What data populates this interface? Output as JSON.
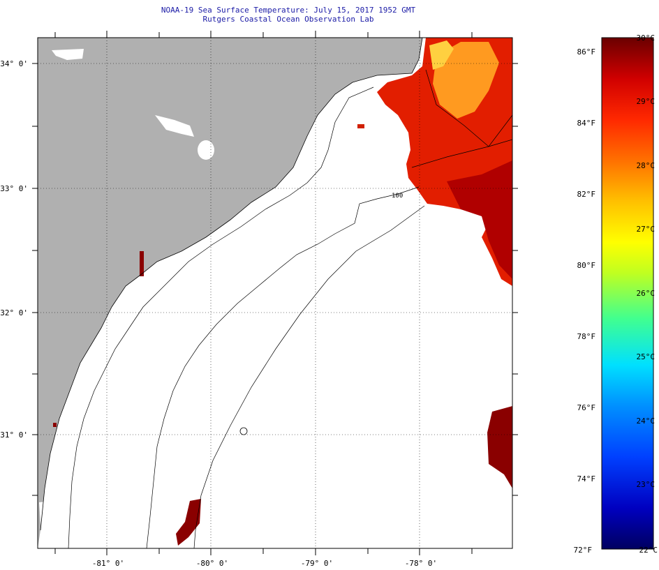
{
  "header": {
    "title": "NOAA-19 Sea Surface Temperature:  July 15, 2017 1952 GMT",
    "subtitle": "Rutgers Coastal Ocean Observation Lab"
  },
  "map": {
    "lon_ticks": [
      "-81° 0'",
      "-80° 0'",
      "-79° 0'",
      "-78° 0'"
    ],
    "lat_ticks": [
      "34° 0'",
      "33° 0'",
      "32° 0'",
      "31° 0'"
    ],
    "isobath_label": "100"
  },
  "colorbar": {
    "fahrenheit_labels": [
      "86°F",
      "84°F",
      "82°F",
      "80°F",
      "78°F",
      "76°F",
      "74°F",
      "72°F"
    ],
    "celsius_labels": [
      "30°C",
      "29°C",
      "28°C",
      "27°C",
      "26°C",
      "25°C",
      "24°C",
      "23°C",
      "22°C"
    ],
    "colors": [
      "#7a0000",
      "#c00000",
      "#ff2000",
      "#ff7000",
      "#ffc000",
      "#ffff00",
      "#a0ff40",
      "#40ffc0",
      "#00d0ff",
      "#0080ff",
      "#0020ff",
      "#0000a0",
      "#000060"
    ]
  },
  "colors": {
    "land": "#b0b0b0",
    "title": "#1a1aa6"
  }
}
